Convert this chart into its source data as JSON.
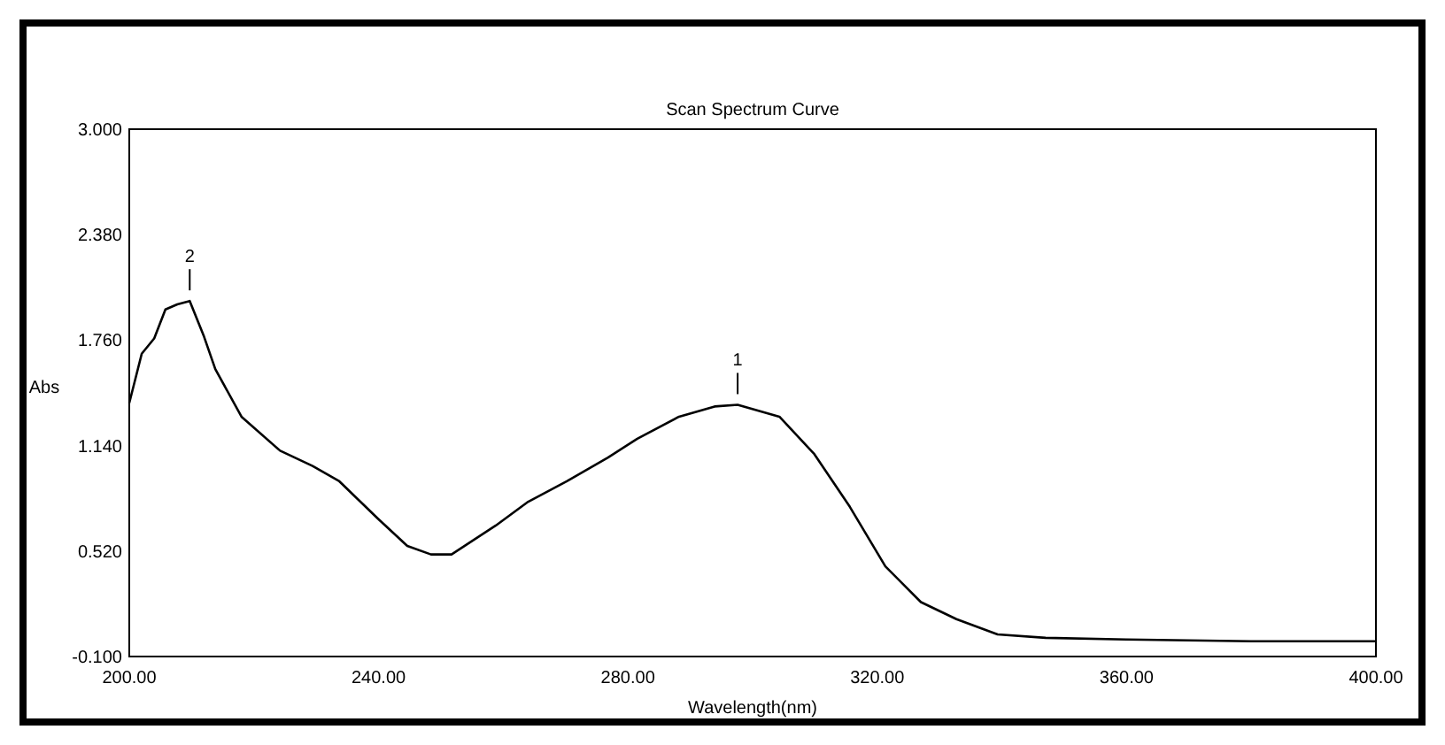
{
  "chart_data": {
    "type": "line",
    "title": "Scan Spectrum Curve",
    "xlabel": "Wavelength(nm)",
    "ylabel": "Abs",
    "xlim": [
      200,
      400
    ],
    "ylim": [
      -0.1,
      3.0
    ],
    "xticks": [
      {
        "value": 200,
        "label": "200.00"
      },
      {
        "value": 240,
        "label": "240.00"
      },
      {
        "value": 280,
        "label": "280.00"
      },
      {
        "value": 320,
        "label": "320.00"
      },
      {
        "value": 360,
        "label": "360.00"
      },
      {
        "value": 400,
        "label": "400.00"
      }
    ],
    "yticks": [
      {
        "value": -0.1,
        "label": "-0.100"
      },
      {
        "value": 0.52,
        "label": "0.520"
      },
      {
        "value": 1.14,
        "label": "1.140"
      },
      {
        "value": 1.76,
        "label": "1.760"
      },
      {
        "value": 2.38,
        "label": "2.380"
      },
      {
        "value": 3.0,
        "label": "3.000"
      }
    ],
    "grid": false,
    "marker": "none",
    "line_style": "solid",
    "annotations": [
      {
        "text": "2",
        "x": 209.7,
        "y": 1.99
      },
      {
        "text": "1",
        "x": 297.6,
        "y": 1.38
      }
    ],
    "series": [
      {
        "color": "#000000",
        "x": [
          200,
          202,
          204,
          205.8,
          207.7,
          209.7,
          212,
          213.8,
          218,
          224.2,
          229.4,
          233.7,
          239.9,
          244.6,
          248.4,
          251.7,
          258.8,
          264,
          270.2,
          276.8,
          281.5,
          288.2,
          293.9,
          297.6,
          304.3,
          309.9,
          315.6,
          321.3,
          327,
          332.7,
          339.3,
          347,
          360,
          380,
          400
        ],
        "values": [
          1.39,
          1.68,
          1.77,
          1.94,
          1.97,
          1.99,
          1.78,
          1.59,
          1.31,
          1.11,
          1.02,
          0.93,
          0.71,
          0.55,
          0.5,
          0.5,
          0.67,
          0.81,
          0.93,
          1.07,
          1.18,
          1.31,
          1.37,
          1.38,
          1.31,
          1.09,
          0.78,
          0.43,
          0.22,
          0.12,
          0.03,
          0.01,
          0.0,
          -0.01,
          -0.01
        ]
      }
    ]
  }
}
